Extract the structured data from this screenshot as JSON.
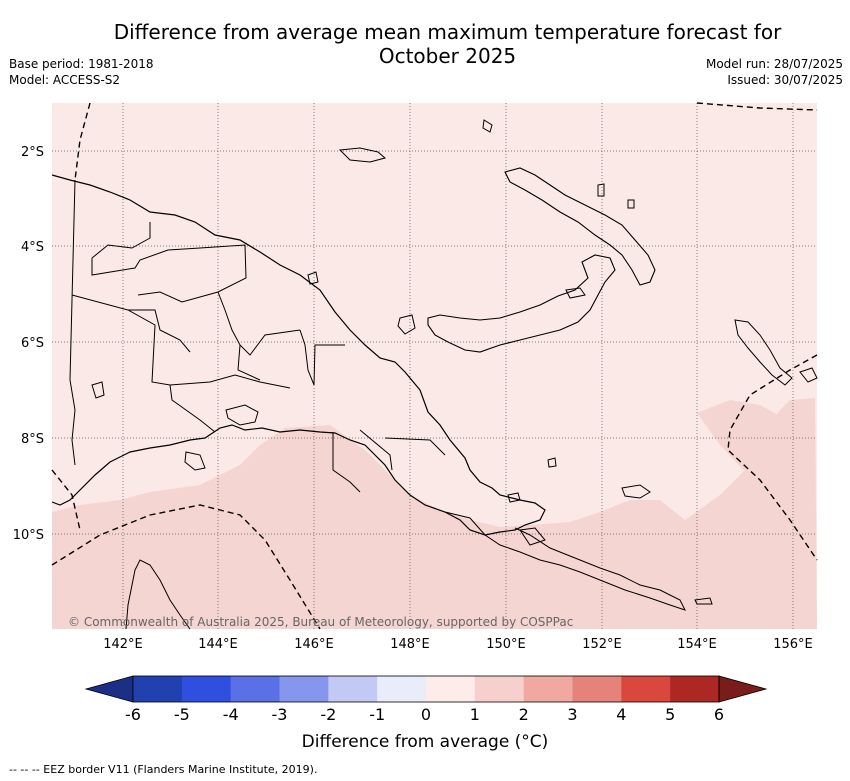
{
  "title_line1": "Difference from average mean maximum temperature forecast for",
  "title_line2": "October 2025",
  "meta_left": [
    "Base period: 1981-2018",
    "Model: ACCESS-S2"
  ],
  "meta_right": [
    "Model run: 28/07/2025",
    "Issued: 30/07/2025"
  ],
  "map": {
    "lon_ticks": [
      "142°E",
      "144°E",
      "146°E",
      "148°E",
      "150°E",
      "152°E",
      "154°E",
      "156°E"
    ],
    "lat_ticks": [
      "2°S",
      "4°S",
      "6°S",
      "8°S",
      "10°S"
    ],
    "copyright": "© Commonwealth of Australia 2025, Bureau of Meteorology, supported by COSPPac",
    "base_fill": "#fbe9e7",
    "warm_fill": "#f5d5d1"
  },
  "colorbar": {
    "label": "Difference from average (°C)",
    "tick_labels": [
      "-6",
      "-5",
      "-4",
      "-3",
      "-2",
      "-1",
      "0",
      "1",
      "2",
      "3",
      "4",
      "5",
      "6"
    ],
    "colors": [
      "#2141b0",
      "#2e4fe0",
      "#5970e6",
      "#8597ec",
      "#c1c9f4",
      "#e9edfa",
      "#fdecea",
      "#f6d0cc",
      "#f0a8a1",
      "#e5837b",
      "#d9473d",
      "#ad2823"
    ],
    "under_color": "#1c2f86",
    "over_color": "#7a1c19"
  },
  "footer": "-- -- -- EEZ border V11 (Flanders Marine Institute, 2019)."
}
